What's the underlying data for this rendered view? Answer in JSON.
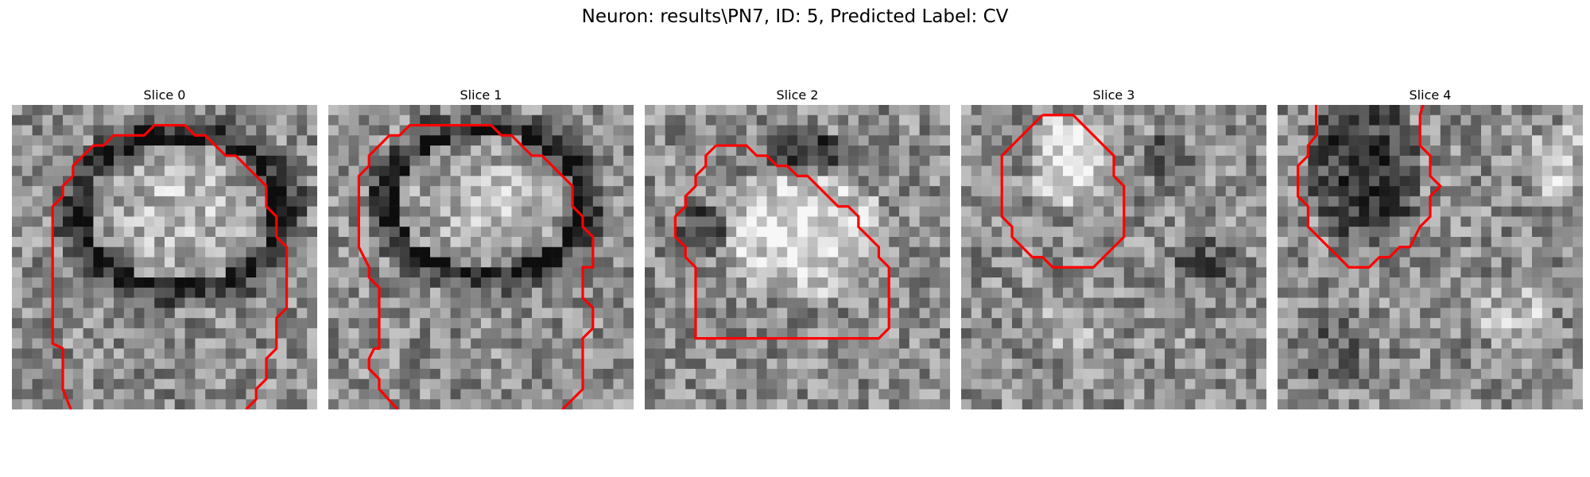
{
  "figure": {
    "title": "Neuron: results\\PN7, ID: 5, Predicted Label: CV",
    "contour_color": "#ff0000"
  },
  "slices": [
    {
      "title": "Slice 0",
      "image": "grayscale-microscopy-slice"
    },
    {
      "title": "Slice 1",
      "image": "grayscale-microscopy-slice"
    },
    {
      "title": "Slice 2",
      "image": "grayscale-microscopy-slice"
    },
    {
      "title": "Slice 3",
      "image": "grayscale-microscopy-slice"
    },
    {
      "title": "Slice 4",
      "image": "grayscale-microscopy-slice"
    }
  ]
}
